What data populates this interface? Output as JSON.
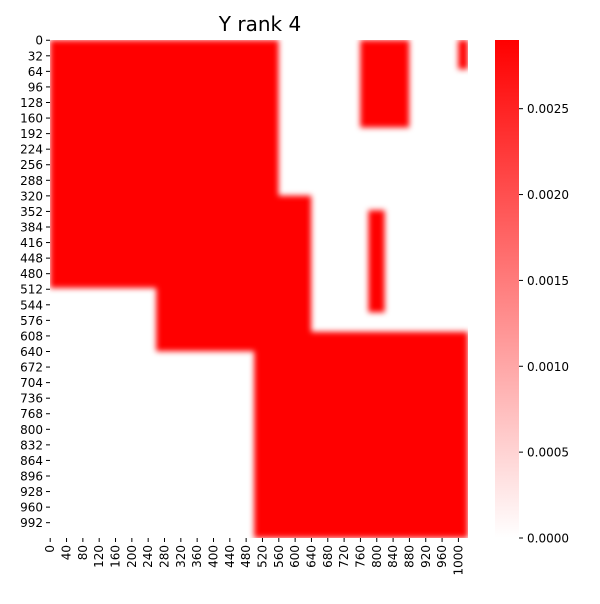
{
  "chart_data": {
    "type": "heatmap",
    "title": "Y rank 4",
    "xlabel": "",
    "ylabel": "",
    "matrix_size": [
      1024,
      1024
    ],
    "x_tick_labels": [
      "0",
      "40",
      "80",
      "120",
      "160",
      "200",
      "240",
      "280",
      "320",
      "360",
      "400",
      "440",
      "480",
      "520",
      "560",
      "600",
      "640",
      "680",
      "720",
      "760",
      "800",
      "840",
      "880",
      "920",
      "960",
      "1000"
    ],
    "y_tick_labels": [
      "0",
      "32",
      "64",
      "96",
      "128",
      "160",
      "192",
      "224",
      "256",
      "288",
      "320",
      "352",
      "384",
      "416",
      "448",
      "480",
      "512",
      "544",
      "576",
      "608",
      "640",
      "672",
      "704",
      "736",
      "768",
      "800",
      "832",
      "864",
      "896",
      "928",
      "960",
      "992"
    ],
    "colorbar": {
      "min": 0.0,
      "max": 0.0029,
      "ticks": [
        "0.0000",
        "0.0005",
        "0.0010",
        "0.0015",
        "0.0020",
        "0.0025"
      ],
      "colormap": [
        "#ffffff",
        "#ff0000"
      ]
    },
    "blocks_description": "approximate regions of high value (red) in index units",
    "high_regions": [
      {
        "x": [
          0,
          560
        ],
        "y": [
          0,
          330
        ]
      },
      {
        "x": [
          0,
          280
        ],
        "y": [
          0,
          510
        ]
      },
      {
        "x": [
          260,
          640
        ],
        "y": [
          320,
          640
        ]
      },
      {
        "x": [
          500,
          1024
        ],
        "y": [
          600,
          1024
        ]
      },
      {
        "x": [
          760,
          880
        ],
        "y": [
          0,
          180
        ]
      },
      {
        "x": [
          780,
          820
        ],
        "y": [
          350,
          560
        ]
      },
      {
        "x": [
          1000,
          1024
        ],
        "y": [
          0,
          60
        ]
      }
    ]
  },
  "colors": {
    "high": "#ff0000",
    "low": "#ffffff"
  }
}
